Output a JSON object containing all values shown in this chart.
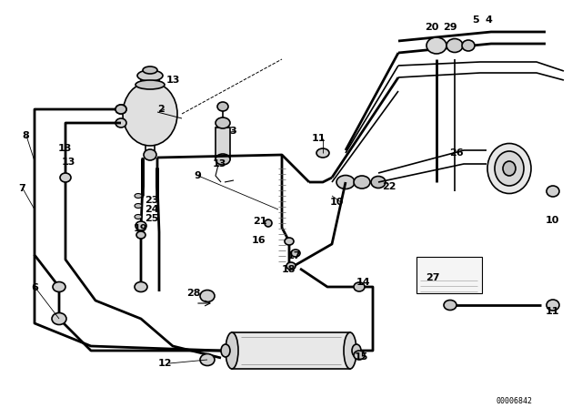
{
  "background_color": "#ffffff",
  "line_color": "#000000",
  "diagram_code": "00006842",
  "lw_thin": 0.8,
  "lw_med": 1.2,
  "lw_thick": 2.0,
  "labels": [
    [
      155,
      62,
      "2"
    ],
    [
      238,
      68,
      "3"
    ],
    [
      533,
      23,
      "4"
    ],
    [
      519,
      23,
      "5"
    ],
    [
      42,
      316,
      "6"
    ],
    [
      30,
      207,
      "7"
    ],
    [
      34,
      150,
      "8"
    ],
    [
      223,
      193,
      "9"
    ],
    [
      380,
      218,
      "10"
    ],
    [
      602,
      243,
      "10"
    ],
    [
      362,
      153,
      "11"
    ],
    [
      602,
      342,
      "11"
    ],
    [
      192,
      397,
      "12"
    ],
    [
      64,
      164,
      "13"
    ],
    [
      68,
      181,
      "13"
    ],
    [
      183,
      88,
      "13"
    ],
    [
      234,
      182,
      "13"
    ],
    [
      395,
      310,
      "14"
    ],
    [
      392,
      392,
      "15"
    ],
    [
      278,
      264,
      "16"
    ],
    [
      317,
      281,
      "17"
    ],
    [
      312,
      296,
      "18"
    ],
    [
      148,
      249,
      "19"
    ],
    [
      468,
      31,
      "20"
    ],
    [
      278,
      243,
      "21"
    ],
    [
      421,
      205,
      "22"
    ],
    [
      161,
      219,
      "23"
    ],
    [
      161,
      230,
      "24"
    ],
    [
      161,
      240,
      "25"
    ],
    [
      495,
      168,
      "26"
    ],
    [
      469,
      305,
      "27"
    ],
    [
      207,
      320,
      "28"
    ],
    [
      487,
      31,
      "29"
    ]
  ]
}
